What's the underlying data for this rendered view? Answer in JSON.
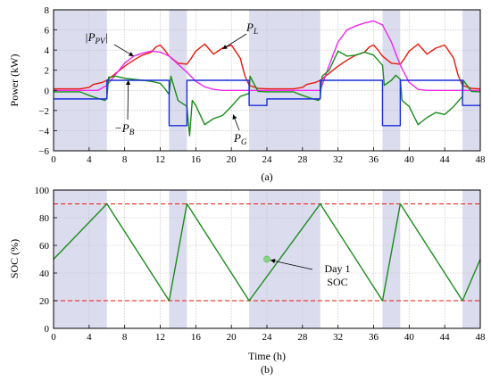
{
  "chart_data": [
    {
      "type": "line",
      "caption": "(a)",
      "xlabel": "",
      "ylabel": "Power (kW)",
      "xlim": [
        0,
        48
      ],
      "ylim": [
        -6,
        8
      ],
      "xticks": [
        "0",
        "4",
        "8",
        "12",
        "16",
        "20",
        "24",
        "28",
        "32",
        "36",
        "40",
        "44",
        "48"
      ],
      "yticks": [
        "−6",
        "−4",
        "−2",
        "0",
        "2",
        "4",
        "6",
        "8"
      ],
      "shaded_intervals": [
        [
          0,
          6
        ],
        [
          13,
          15
        ],
        [
          22,
          30
        ],
        [
          37,
          39
        ],
        [
          46,
          48
        ]
      ],
      "annotations": [
        {
          "text": "|P",
          "sub": "PV",
          "tail": "|",
          "anchor": [
            9.0,
            3.4
          ]
        },
        {
          "text": "P",
          "sub": "L",
          "anchor": [
            19.0,
            4.1
          ]
        },
        {
          "text": "−P",
          "sub": "B",
          "anchor": [
            8.4,
            1.0
          ]
        },
        {
          "text": "P",
          "sub": "G",
          "anchor": [
            20.2,
            -2.4
          ]
        }
      ],
      "series": [
        {
          "name": "PL",
          "color": "#e8190c",
          "points": [
            [
              0,
              0.15
            ],
            [
              3,
              0.15
            ],
            [
              4,
              0.3
            ],
            [
              4.5,
              0.6
            ],
            [
              5,
              0.7
            ],
            [
              5.5,
              0.8
            ],
            [
              6,
              1.0
            ],
            [
              7,
              1.7
            ],
            [
              8,
              2.4
            ],
            [
              9,
              3.0
            ],
            [
              10,
              3.5
            ],
            [
              11,
              3.8
            ],
            [
              11.5,
              4.3
            ],
            [
              12,
              4.5
            ],
            [
              12.5,
              4.0
            ],
            [
              13,
              3.4
            ],
            [
              14,
              2.7
            ],
            [
              15,
              2.6
            ],
            [
              15.5,
              3.2
            ],
            [
              16,
              3.9
            ],
            [
              17,
              4.6
            ],
            [
              17.5,
              4.1
            ],
            [
              18,
              3.6
            ],
            [
              19,
              4.2
            ],
            [
              20,
              4.5
            ],
            [
              21,
              3.2
            ],
            [
              21.5,
              1.5
            ],
            [
              22,
              0.5
            ],
            [
              23,
              0.2
            ],
            [
              24,
              0.15
            ],
            [
              27,
              0.15
            ],
            [
              28,
              0.3
            ],
            [
              28.5,
              0.6
            ],
            [
              29,
              0.7
            ],
            [
              29.5,
              0.8
            ],
            [
              30,
              1.0
            ],
            [
              31,
              1.7
            ],
            [
              32,
              2.4
            ],
            [
              33,
              3.0
            ],
            [
              34,
              3.5
            ],
            [
              35,
              3.8
            ],
            [
              35.5,
              4.3
            ],
            [
              36,
              4.5
            ],
            [
              36.5,
              4.0
            ],
            [
              37,
              3.4
            ],
            [
              38,
              2.7
            ],
            [
              39,
              2.6
            ],
            [
              39.5,
              3.2
            ],
            [
              40,
              3.9
            ],
            [
              41,
              4.6
            ],
            [
              41.5,
              4.1
            ],
            [
              42,
              3.6
            ],
            [
              43,
              4.2
            ],
            [
              44,
              4.5
            ],
            [
              45,
              3.2
            ],
            [
              45.5,
              1.5
            ],
            [
              46,
              0.5
            ],
            [
              47,
              0.2
            ],
            [
              48,
              0.15
            ]
          ]
        },
        {
          "name": "|PPV|",
          "color": "#ee28ee",
          "points": [
            [
              0,
              0
            ],
            [
              5,
              0
            ],
            [
              6,
              0.5
            ],
            [
              7,
              1.6
            ],
            [
              8,
              2.7
            ],
            [
              9,
              3.4
            ],
            [
              10,
              3.7
            ],
            [
              11,
              3.9
            ],
            [
              12,
              3.8
            ],
            [
              13,
              3.4
            ],
            [
              14,
              2.6
            ],
            [
              15,
              1.8
            ],
            [
              16,
              0.9
            ],
            [
              17,
              0.35
            ],
            [
              18,
              0.1
            ],
            [
              19,
              0
            ],
            [
              30,
              0
            ],
            [
              31,
              2.5
            ],
            [
              32,
              4.8
            ],
            [
              33,
              6.0
            ],
            [
              34,
              6.4
            ],
            [
              35,
              6.7
            ],
            [
              36,
              6.9
            ],
            [
              37,
              6.5
            ],
            [
              38,
              4.8
            ],
            [
              39,
              2.5
            ],
            [
              40,
              0.8
            ],
            [
              41,
              0.1
            ],
            [
              42,
              0
            ],
            [
              48,
              0
            ]
          ]
        },
        {
          "name": "PG",
          "color": "#1a8c1a",
          "points": [
            [
              0,
              -0.15
            ],
            [
              3,
              -0.15
            ],
            [
              4,
              -0.5
            ],
            [
              5,
              -0.8
            ],
            [
              5.8,
              -1.0
            ],
            [
              6,
              -0.7
            ],
            [
              6.2,
              1.3
            ],
            [
              7,
              1.4
            ],
            [
              8,
              1.2
            ],
            [
              9,
              1.1
            ],
            [
              10,
              1.0
            ],
            [
              11,
              0.9
            ],
            [
              12,
              0.7
            ],
            [
              12.5,
              0.2
            ],
            [
              13,
              -0.4
            ],
            [
              13.2,
              1.4
            ],
            [
              14,
              -1.0
            ],
            [
              15,
              -1.6
            ],
            [
              15.3,
              -4.5
            ],
            [
              15.6,
              -1.0
            ],
            [
              16,
              -1.5
            ],
            [
              17,
              -3.4
            ],
            [
              18,
              -2.8
            ],
            [
              19,
              -2.5
            ],
            [
              20,
              -1.6
            ],
            [
              21,
              -0.6
            ],
            [
              22,
              -0.3
            ],
            [
              22.1,
              1.4
            ],
            [
              23,
              -0.1
            ],
            [
              24,
              -0.15
            ],
            [
              27,
              -0.15
            ],
            [
              28,
              -0.5
            ],
            [
              29,
              -0.8
            ],
            [
              29.8,
              -1.0
            ],
            [
              30,
              -0.7
            ],
            [
              30.2,
              1.4
            ],
            [
              31,
              2.0
            ],
            [
              32,
              3.9
            ],
            [
              33,
              3.4
            ],
            [
              34,
              3.5
            ],
            [
              35,
              3.8
            ],
            [
              36,
              3.5
            ],
            [
              37,
              2.5
            ],
            [
              37.2,
              0.5
            ],
            [
              38,
              1.0
            ],
            [
              38.5,
              1.5
            ],
            [
              39,
              1.1
            ],
            [
              39.2,
              -1.0
            ],
            [
              40,
              -1.6
            ],
            [
              41,
              -3.4
            ],
            [
              42,
              -2.7
            ],
            [
              43,
              -2.2
            ],
            [
              44,
              -2.4
            ],
            [
              45,
              -1.6
            ],
            [
              46,
              -0.6
            ],
            [
              46.1,
              1.0
            ],
            [
              47,
              -0.1
            ],
            [
              48,
              -0.15
            ]
          ]
        },
        {
          "name": "−PB",
          "color": "#1a2ed8",
          "points": [
            [
              0,
              -0.85
            ],
            [
              6,
              -0.85
            ],
            [
              6,
              1.0
            ],
            [
              13,
              1.0
            ],
            [
              13,
              -3.5
            ],
            [
              15,
              -3.5
            ],
            [
              15,
              1.0
            ],
            [
              22,
              1.0
            ],
            [
              22,
              -1.5
            ],
            [
              24,
              -1.5
            ],
            [
              24,
              -0.85
            ],
            [
              30,
              -0.85
            ],
            [
              30,
              1.0
            ],
            [
              37,
              1.0
            ],
            [
              37,
              -3.5
            ],
            [
              39,
              -3.5
            ],
            [
              39,
              1.0
            ],
            [
              46,
              1.0
            ],
            [
              46,
              -1.5
            ],
            [
              48,
              -1.5
            ]
          ]
        }
      ]
    },
    {
      "type": "line",
      "caption": "(b)",
      "xlabel": "Time (h)",
      "ylabel": "SOC (%)",
      "xlim": [
        0,
        48
      ],
      "ylim": [
        0,
        100
      ],
      "xticks": [
        "0",
        "4",
        "8",
        "12",
        "16",
        "20",
        "24",
        "28",
        "32",
        "36",
        "40",
        "44",
        "48"
      ],
      "yticks": [
        "0",
        "20",
        "40",
        "60",
        "80",
        "100"
      ],
      "shaded_intervals": [
        [
          0,
          6
        ],
        [
          13,
          15
        ],
        [
          22,
          30
        ],
        [
          37,
          39
        ],
        [
          46,
          48
        ]
      ],
      "reference_lines": [
        {
          "y": 90,
          "color": "#e8190c"
        },
        {
          "y": 20,
          "color": "#e8190c"
        }
      ],
      "series": [
        {
          "name": "SOC",
          "color": "#1a8c1a",
          "points": [
            [
              0,
              50
            ],
            [
              6,
              90
            ],
            [
              13,
              20
            ],
            [
              15,
              90
            ],
            [
              22,
              20
            ],
            [
              30,
              90
            ],
            [
              37,
              20
            ],
            [
              39,
              90
            ],
            [
              46,
              20
            ],
            [
              48,
              50
            ]
          ]
        }
      ],
      "marker": {
        "x": 24,
        "y": 50,
        "color": "#86d386"
      },
      "annotation": {
        "lines": [
          "Day 1",
          "SOC"
        ],
        "points_to": [
          24,
          50
        ]
      }
    }
  ]
}
